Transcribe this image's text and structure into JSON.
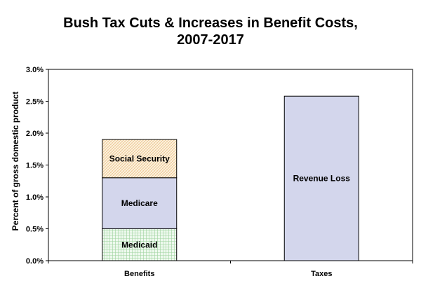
{
  "chart_data": {
    "type": "bar",
    "stacked": true,
    "title_lines": [
      "Bush Tax Cuts & Increases in Benefit Costs,",
      "2007-2017"
    ],
    "ylabel": "Percent of gross domestic product",
    "xlabel": "",
    "ylim": [
      0,
      3.0
    ],
    "ytick_values": [
      0,
      0.5,
      1.0,
      1.5,
      2.0,
      2.5,
      3.0
    ],
    "ytick_labels": [
      "0.0%",
      "0.5%",
      "1.0%",
      "1.5%",
      "2.0%",
      "2.5%",
      "3.0%"
    ],
    "grid": false,
    "legend": "none",
    "categories": [
      "Benefits",
      "Taxes"
    ],
    "bars": [
      {
        "category": "Benefits",
        "segments": [
          {
            "label": "Medicaid",
            "value": 0.5,
            "color": "#e6f5e6",
            "pattern": "grid-green"
          },
          {
            "label": "Medicare",
            "value": 0.8,
            "color": "#d3d6ec",
            "pattern": "solid"
          },
          {
            "label": "Social Security",
            "value": 0.6,
            "color": "#fbf0dc",
            "pattern": "dots-orange"
          }
        ]
      },
      {
        "category": "Taxes",
        "segments": [
          {
            "label": "Revenue Loss",
            "value": 2.58,
            "color": "#d3d6ec",
            "pattern": "solid"
          }
        ]
      }
    ]
  }
}
